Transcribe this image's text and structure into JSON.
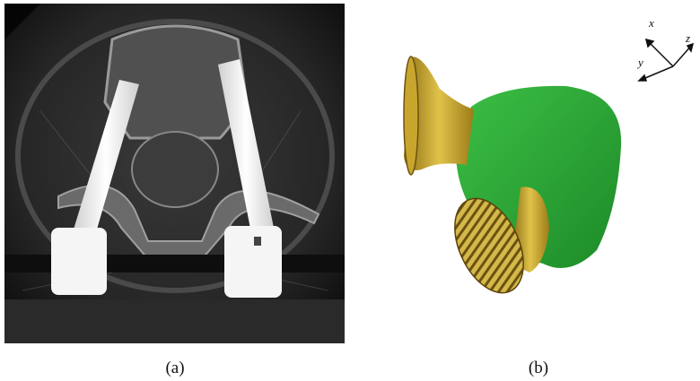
{
  "figure": {
    "panels": [
      {
        "caption": "(a)"
      },
      {
        "caption": "(b)"
      }
    ],
    "axes": {
      "x": "x",
      "y": "y",
      "z": "z"
    },
    "colors": {
      "ct_background": "#1a1a1a",
      "implant": "#ffffff",
      "bone": "#8a8a8a",
      "tissue_green": "#2ea836",
      "screw_gold": "#c9a72c"
    }
  }
}
